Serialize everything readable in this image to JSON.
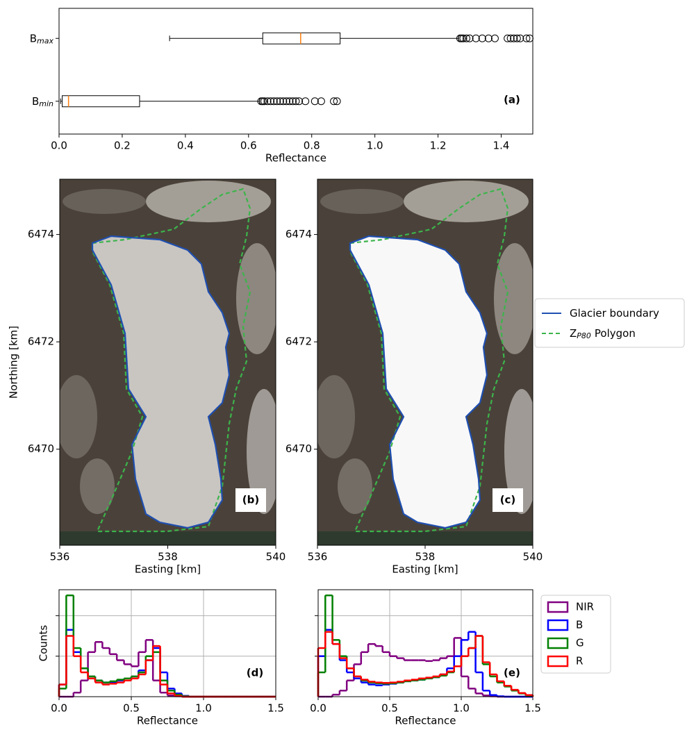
{
  "chart_data": [
    {
      "type": "box",
      "xlabel": "Reflectance",
      "annotation": "(a)",
      "xlim": [
        0,
        1.5
      ],
      "xticks": [
        {
          "value": 0,
          "label": "0.0"
        },
        0.2,
        0.4,
        0.6,
        0.8,
        {
          "value": 1,
          "label": "1.0"
        },
        1.2,
        1.4
      ],
      "color": "#000000",
      "median_color": "#ff7f0e",
      "boxes": [
        {
          "label": {
            "main": "B",
            "sub": "max"
          },
          "whislo": 0.35,
          "q1": 0.645,
          "med": 0.765,
          "q3": 0.89,
          "whishi": 1.265,
          "fliers": [
            1.27,
            1.275,
            1.28,
            1.29,
            1.3,
            1.32,
            1.34,
            1.36,
            1.38,
            1.42,
            1.43,
            1.44,
            1.45,
            1.46,
            1.48,
            1.49
          ]
        },
        {
          "label": {
            "main": "B",
            "sub": "min"
          },
          "whislo": 0.005,
          "q1": 0.01,
          "med": 0.03,
          "q3": 0.255,
          "whishi": 0.635,
          "fliers": [
            0.64,
            0.645,
            0.65,
            0.66,
            0.67,
            0.68,
            0.69,
            0.7,
            0.71,
            0.72,
            0.73,
            0.74,
            0.75,
            0.76,
            0.78,
            0.81,
            0.83,
            0.87,
            0.88
          ]
        }
      ]
    },
    {
      "type": "map",
      "annotation": "(b)",
      "xlabel": "Easting [km]",
      "ylabel": "Northing [km]",
      "xlim": [
        536,
        540
      ],
      "ylim": [
        6468.21,
        6475.03
      ],
      "xticks": [
        536,
        538,
        540
      ],
      "yticks": [
        6470,
        6472,
        6474
      ]
    },
    {
      "type": "map",
      "annotation": "(c)",
      "xlabel": "Easting [km]",
      "xlim": [
        536,
        540
      ],
      "ylim": [
        6468.21,
        6475.03
      ],
      "xticks": [
        536,
        538,
        540
      ],
      "yticks": [
        6470,
        6472,
        6474
      ],
      "legend": [
        {
          "name": {
            "main": "Glacier boundary"
          },
          "color": "#1f4fb0",
          "style": "solid"
        },
        {
          "name": {
            "main": "Z",
            "sub": "P80",
            "tail": "Polygon"
          },
          "color": "#3cb44b",
          "style": "dashed"
        }
      ]
    },
    {
      "type": "histogram",
      "annotation": "(d)",
      "xlabel": "Reflectance",
      "ylabel": "Counts",
      "grid": true,
      "xlim": [
        0,
        1.5
      ],
      "ylim": [
        0,
        2.64
      ],
      "xticks": [
        {
          "value": 0,
          "label": "0.0"
        },
        0.5,
        {
          "value": 1,
          "label": "1.0"
        },
        1.5
      ],
      "yticks": [
        1,
        2
      ],
      "bins": [
        0,
        0.05,
        0.1,
        0.15,
        0.2,
        0.25,
        0.3,
        0.35,
        0.4,
        0.45,
        0.5,
        0.55,
        0.6,
        0.65,
        0.7,
        0.75,
        0.8,
        0.85,
        0.9,
        0.95,
        1,
        1.05,
        1.1,
        1.15,
        1.2,
        1.25,
        1.3,
        1.35,
        1.4,
        1.45,
        1.5
      ],
      "series": [
        {
          "color": "#800080",
          "values": [
            0,
            0,
            0.1,
            0.4,
            1.1,
            1.35,
            1.2,
            1.05,
            0.9,
            0.8,
            0.75,
            1.1,
            1.4,
            0.4,
            0.1,
            0.03,
            0.01,
            0,
            0,
            0,
            0,
            0,
            0,
            0,
            0,
            0,
            0,
            0,
            0,
            0
          ]
        },
        {
          "color": "#0000ff",
          "values": [
            0.3,
            1.65,
            1.1,
            0.7,
            0.5,
            0.4,
            0.35,
            0.35,
            0.4,
            0.45,
            0.5,
            0.65,
            0.9,
            1.2,
            0.6,
            0.2,
            0.08,
            0.02,
            0,
            0,
            0,
            0,
            0,
            0,
            0,
            0,
            0,
            0,
            0,
            0
          ]
        },
        {
          "color": "#008000",
          "values": [
            0.2,
            2.5,
            1.2,
            0.7,
            0.5,
            0.4,
            0.35,
            0.38,
            0.42,
            0.45,
            0.5,
            0.6,
            1,
            1.1,
            0.4,
            0.15,
            0.05,
            0.01,
            0,
            0,
            0,
            0,
            0,
            0,
            0,
            0,
            0,
            0,
            0,
            0
          ]
        },
        {
          "color": "#ff0000",
          "values": [
            0.3,
            1.5,
            1,
            0.6,
            0.45,
            0.35,
            0.3,
            0.32,
            0.35,
            0.4,
            0.45,
            0.55,
            0.9,
            1.25,
            0.3,
            0.08,
            0.02,
            0,
            0,
            0,
            0,
            0,
            0,
            0,
            0,
            0,
            0,
            0,
            0,
            0
          ]
        }
      ]
    },
    {
      "type": "histogram",
      "annotation": "(e)",
      "xlabel": "Reflectance",
      "grid": true,
      "legend": "right",
      "xlim": [
        0,
        1.5
      ],
      "ylim": [
        0,
        2.64
      ],
      "xticks": [
        {
          "value": 0,
          "label": "0.0"
        },
        0.5,
        {
          "value": 1,
          "label": "1.0"
        },
        1.5
      ],
      "yticks": [
        1,
        2
      ],
      "bins": [
        0,
        0.05,
        0.1,
        0.15,
        0.2,
        0.25,
        0.3,
        0.35,
        0.4,
        0.45,
        0.5,
        0.55,
        0.6,
        0.65,
        0.7,
        0.75,
        0.8,
        0.85,
        0.9,
        0.95,
        1,
        1.05,
        1.1,
        1.15,
        1.2,
        1.25,
        1.3,
        1.35,
        1.4,
        1.45,
        1.5
      ],
      "series": [
        {
          "name": "NIR",
          "color": "#800080",
          "values": [
            0,
            0,
            0.05,
            0.15,
            0.4,
            0.8,
            1.1,
            1.3,
            1.25,
            1.1,
            1,
            0.95,
            0.9,
            0.9,
            0.9,
            0.88,
            0.9,
            0.95,
            1,
            1.45,
            0.5,
            0.2,
            0.08,
            0.03,
            0.01,
            0,
            0,
            0,
            0,
            0
          ]
        },
        {
          "name": "B",
          "color": "#0000ff",
          "values": [
            1,
            1.65,
            1.3,
            0.9,
            0.6,
            0.45,
            0.35,
            0.3,
            0.28,
            0.3,
            0.32,
            0.35,
            0.38,
            0.4,
            0.42,
            0.45,
            0.48,
            0.55,
            0.7,
            1,
            1.4,
            1.6,
            0.6,
            0.15,
            0.04,
            0.01,
            0,
            0,
            0,
            0
          ]
        },
        {
          "name": "G",
          "color": "#008000",
          "values": [
            0.6,
            2.5,
            1.4,
            1,
            0.7,
            0.5,
            0.4,
            0.35,
            0.33,
            0.32,
            0.33,
            0.35,
            0.38,
            0.4,
            0.42,
            0.45,
            0.48,
            0.52,
            0.6,
            0.75,
            1,
            1.2,
            1.5,
            0.8,
            0.5,
            0.35,
            0.25,
            0.15,
            0.08,
            0.03
          ]
        },
        {
          "name": "R",
          "color": "#ff0000",
          "values": [
            1.2,
            1.6,
            1.3,
            0.95,
            0.7,
            0.5,
            0.42,
            0.37,
            0.35,
            0.34,
            0.35,
            0.37,
            0.4,
            0.42,
            0.45,
            0.47,
            0.5,
            0.55,
            0.62,
            0.75,
            1,
            1.2,
            1.5,
            0.85,
            0.55,
            0.38,
            0.27,
            0.17,
            0.09,
            0.04
          ]
        }
      ]
    }
  ]
}
